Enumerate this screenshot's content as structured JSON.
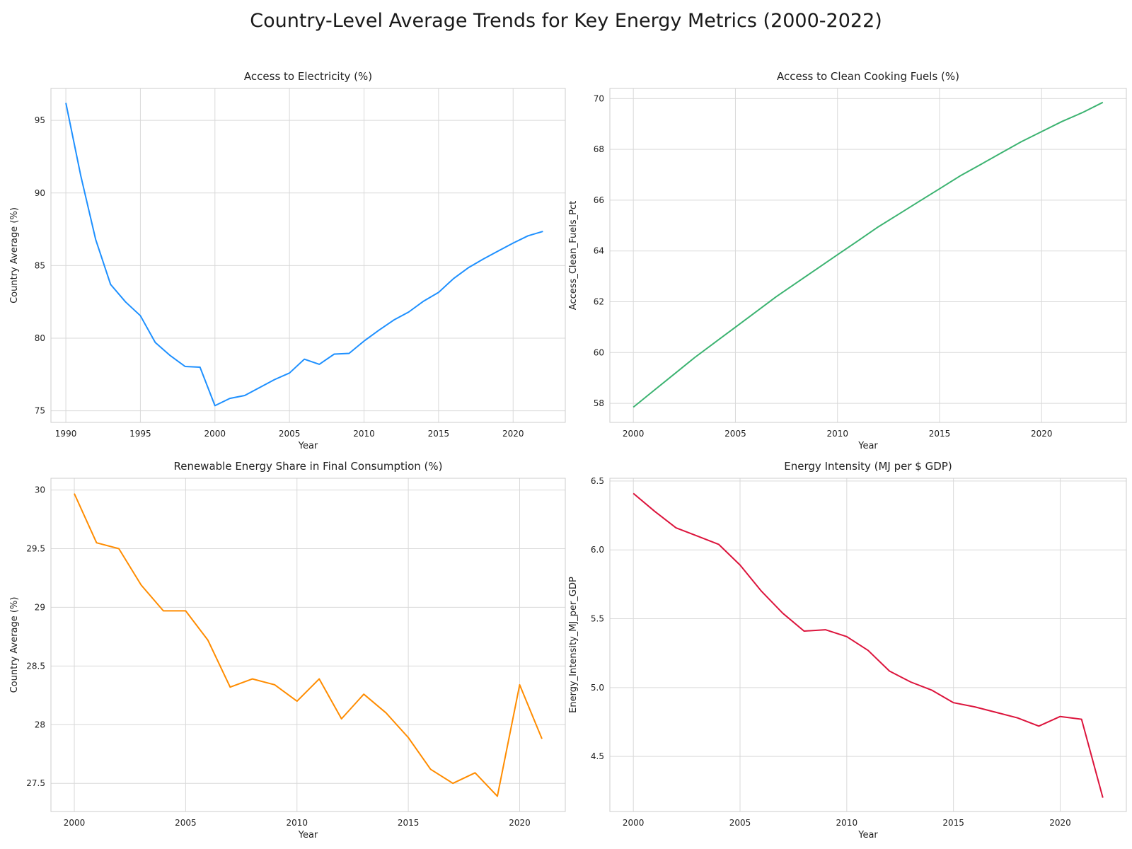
{
  "figure": {
    "title": "Country-Level Average Trends for Key Energy Metrics (2000-2022)"
  },
  "chart_data": [
    {
      "type": "line",
      "title": "Access to Electricity (%)",
      "xlabel": "Year",
      "ylabel": "Country Average (%)",
      "color": "#1e90ff",
      "xlim": [
        1989,
        2023.5
      ],
      "ylim": [
        74.2,
        97.2
      ],
      "xticks": [
        1990,
        1995,
        2000,
        2005,
        2010,
        2015,
        2020
      ],
      "yticks": [
        75,
        80,
        85,
        90,
        95
      ],
      "x": [
        1990,
        1991,
        1992,
        1993,
        1994,
        1995,
        1996,
        1997,
        1998,
        1999,
        2000,
        2001,
        2002,
        2003,
        2004,
        2005,
        2006,
        2007,
        2008,
        2009,
        2010,
        2011,
        2012,
        2013,
        2014,
        2015,
        2016,
        2017,
        2018,
        2019,
        2020,
        2021,
        2022
      ],
      "y": [
        96.2,
        91.2,
        86.8,
        83.7,
        82.5,
        81.55,
        79.7,
        78.8,
        78.05,
        78.0,
        75.35,
        75.85,
        76.05,
        76.6,
        77.15,
        77.6,
        78.55,
        78.2,
        78.9,
        78.95,
        79.8,
        80.55,
        81.25,
        81.8,
        82.55,
        83.15,
        84.1,
        84.85,
        85.45,
        86.0,
        86.55,
        87.05,
        87.35
      ],
      "grid": true
    },
    {
      "type": "line",
      "title": "Access to Clean Cooking Fuels (%)",
      "xlabel": "Year",
      "ylabel": "Access_Clean_Fuels_Pct",
      "color": "#3cb371",
      "xlim": [
        1998.85,
        2024.15
      ],
      "ylim": [
        57.25,
        70.4
      ],
      "xticks": [
        2000,
        2005,
        2010,
        2015,
        2020
      ],
      "yticks": [
        58,
        60,
        62,
        64,
        66,
        68,
        70
      ],
      "x": [
        2000,
        2001,
        2002,
        2003,
        2004,
        2005,
        2006,
        2007,
        2008,
        2009,
        2010,
        2011,
        2012,
        2013,
        2014,
        2015,
        2016,
        2017,
        2018,
        2019,
        2020,
        2021,
        2022,
        2023
      ],
      "y": [
        57.85,
        58.5,
        59.15,
        59.8,
        60.4,
        61.0,
        61.6,
        62.2,
        62.75,
        63.3,
        63.85,
        64.4,
        64.95,
        65.45,
        65.95,
        66.45,
        66.95,
        67.4,
        67.85,
        68.3,
        68.7,
        69.1,
        69.45,
        69.85
      ],
      "grid": true
    },
    {
      "type": "line",
      "title": "Renewable Energy Share in Final Consumption (%)",
      "xlabel": "Year",
      "ylabel": "Country Average (%)",
      "color": "#ff8c00",
      "xlim": [
        1998.95,
        2022.05
      ],
      "ylim": [
        27.26,
        30.1
      ],
      "xticks": [
        2000,
        2005,
        2010,
        2015,
        2020
      ],
      "yticks": [
        27.5,
        28.0,
        28.5,
        29.0,
        29.5,
        30.0
      ],
      "x": [
        2000,
        2001,
        2002,
        2003,
        2004,
        2005,
        2006,
        2007,
        2008,
        2009,
        2010,
        2011,
        2012,
        2013,
        2014,
        2015,
        2016,
        2017,
        2018,
        2019,
        2020,
        2021
      ],
      "y": [
        29.97,
        29.55,
        29.5,
        29.19,
        28.97,
        28.97,
        28.72,
        28.32,
        28.39,
        28.34,
        28.2,
        28.39,
        28.05,
        28.26,
        28.1,
        27.89,
        27.62,
        27.5,
        27.59,
        27.39,
        28.34,
        27.88
      ],
      "grid": true
    },
    {
      "type": "line",
      "title": "Energy Intensity (MJ per $ GDP)",
      "xlabel": "Year",
      "ylabel": "Energy_Intensity_MJ_per_GDP",
      "color": "#dc143c",
      "xlim": [
        1998.9,
        2023.1
      ],
      "ylim": [
        4.1,
        6.52
      ],
      "xticks": [
        2000,
        2005,
        2010,
        2015,
        2020
      ],
      "yticks": [
        4.5,
        5.0,
        5.5,
        6.0,
        6.5
      ],
      "ytick_labels": [
        "4.5",
        "5.0",
        "5.5",
        "6.0",
        "6.5"
      ],
      "x": [
        2000,
        2001,
        2002,
        2003,
        2004,
        2005,
        2006,
        2007,
        2008,
        2009,
        2010,
        2011,
        2012,
        2013,
        2014,
        2015,
        2016,
        2017,
        2018,
        2019,
        2020,
        2021,
        2022
      ],
      "y": [
        6.41,
        6.28,
        6.16,
        6.1,
        6.04,
        5.89,
        5.7,
        5.54,
        5.41,
        5.42,
        5.37,
        5.27,
        5.12,
        5.04,
        4.98,
        4.89,
        4.86,
        4.82,
        4.78,
        4.72,
        4.79,
        4.77,
        4.2
      ],
      "grid": true
    }
  ]
}
